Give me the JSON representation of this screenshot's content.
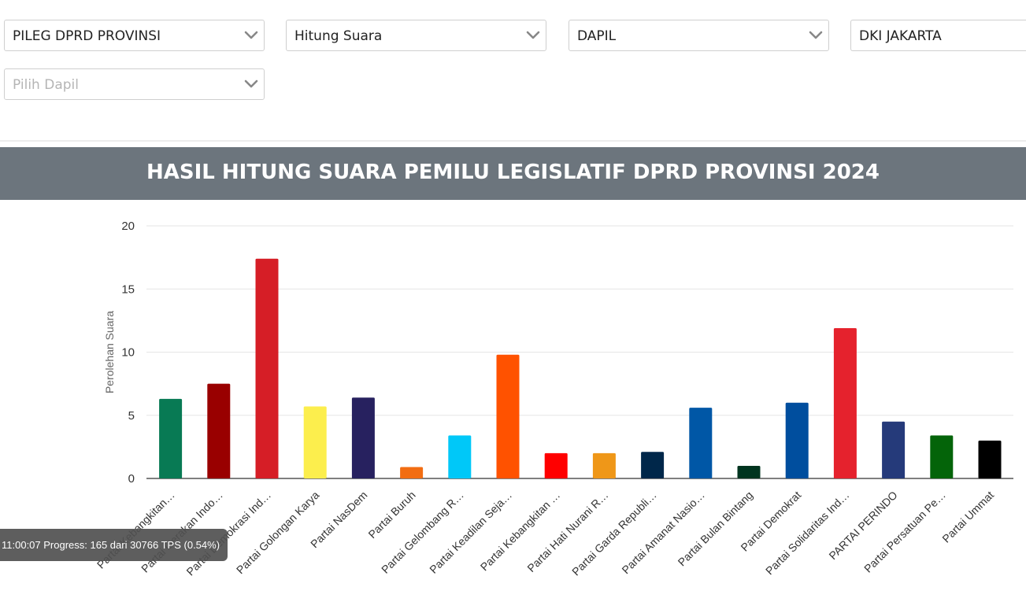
{
  "filters": {
    "election_type": "PILEG DPRD PROVINSI",
    "mode": "Hitung Suara",
    "level": "DAPIL",
    "province": "DKI JAKARTA",
    "dapil_placeholder": "Pilih Dapil"
  },
  "banner": {
    "title": "HASIL HITUNG SUARA PEMILU LEGISLATIF DPRD PROVINSI 2024"
  },
  "toast": {
    "text": "11:00:07 Progress: 165 dari 30766 TPS (0.54%)"
  },
  "chart_data": {
    "type": "bar",
    "title": "HASIL HITUNG SUARA PEMILU LEGISLATIF DPRD PROVINSI 2024",
    "xlabel": "",
    "ylabel": "Perolehan Suara",
    "ylim": [
      0,
      20
    ],
    "yticks": [
      0,
      5,
      10,
      15,
      20
    ],
    "grid": true,
    "legend": "none",
    "categories": [
      "Partai Kebangkitan…",
      "Partai Gerakan Indo…",
      "Partai Demokrasi Ind…",
      "Partai Golongan Karya",
      "Partai NasDem",
      "Partai Buruh",
      "Partai Gelombang R…",
      "Partai Keadilan Seja…",
      "Partai Kebangkitan …",
      "Partai Hati Nurani R…",
      "Partai Garda Republi…",
      "Partai Amanat Nasio…",
      "Partai Bulan Bintang",
      "Partai Demokrat",
      "Partai Solidaritas Ind…",
      "PARTAI PERINDO",
      "Partai Persatuan Pe…",
      "Partai Ummat"
    ],
    "values": [
      6.3,
      7.5,
      17.4,
      5.7,
      6.4,
      0.9,
      3.4,
      9.8,
      2.0,
      2.0,
      2.1,
      5.6,
      1.0,
      6.0,
      11.9,
      4.5,
      3.4,
      3.0
    ],
    "colors": [
      "#087A54",
      "#990000",
      "#D61E26",
      "#FCEE4D",
      "#27215F",
      "#F26D12",
      "#00C8F8",
      "#FF5200",
      "#FF0000",
      "#EF9718",
      "#00274A",
      "#0057A6",
      "#00341F",
      "#004E9E",
      "#E5222D",
      "#253A7A",
      "#046409",
      "#000000"
    ]
  }
}
